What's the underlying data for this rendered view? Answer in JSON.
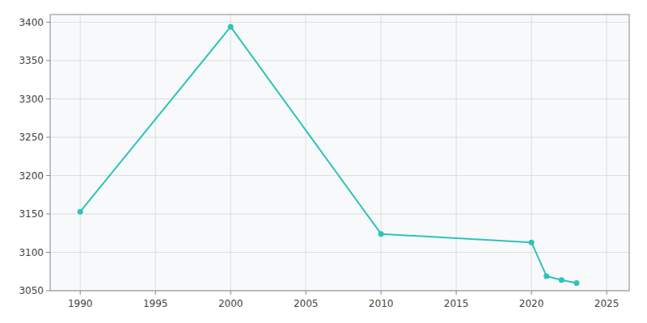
{
  "chart_data": {
    "type": "line",
    "x": [
      1990,
      2000,
      2010,
      2020,
      2021,
      2022,
      2023
    ],
    "values": [
      3153,
      3394,
      3124,
      3113,
      3069,
      3064,
      3060
    ],
    "color": "#2EC4B6",
    "marker": "circle",
    "xlim": [
      1988,
      2026.5
    ],
    "ylim": [
      3050,
      3410
    ],
    "xticks": [
      1990,
      1995,
      2000,
      2005,
      2010,
      2015,
      2020,
      2025
    ],
    "yticks": [
      3050,
      3100,
      3150,
      3200,
      3250,
      3300,
      3350,
      3400
    ],
    "grid": true
  }
}
